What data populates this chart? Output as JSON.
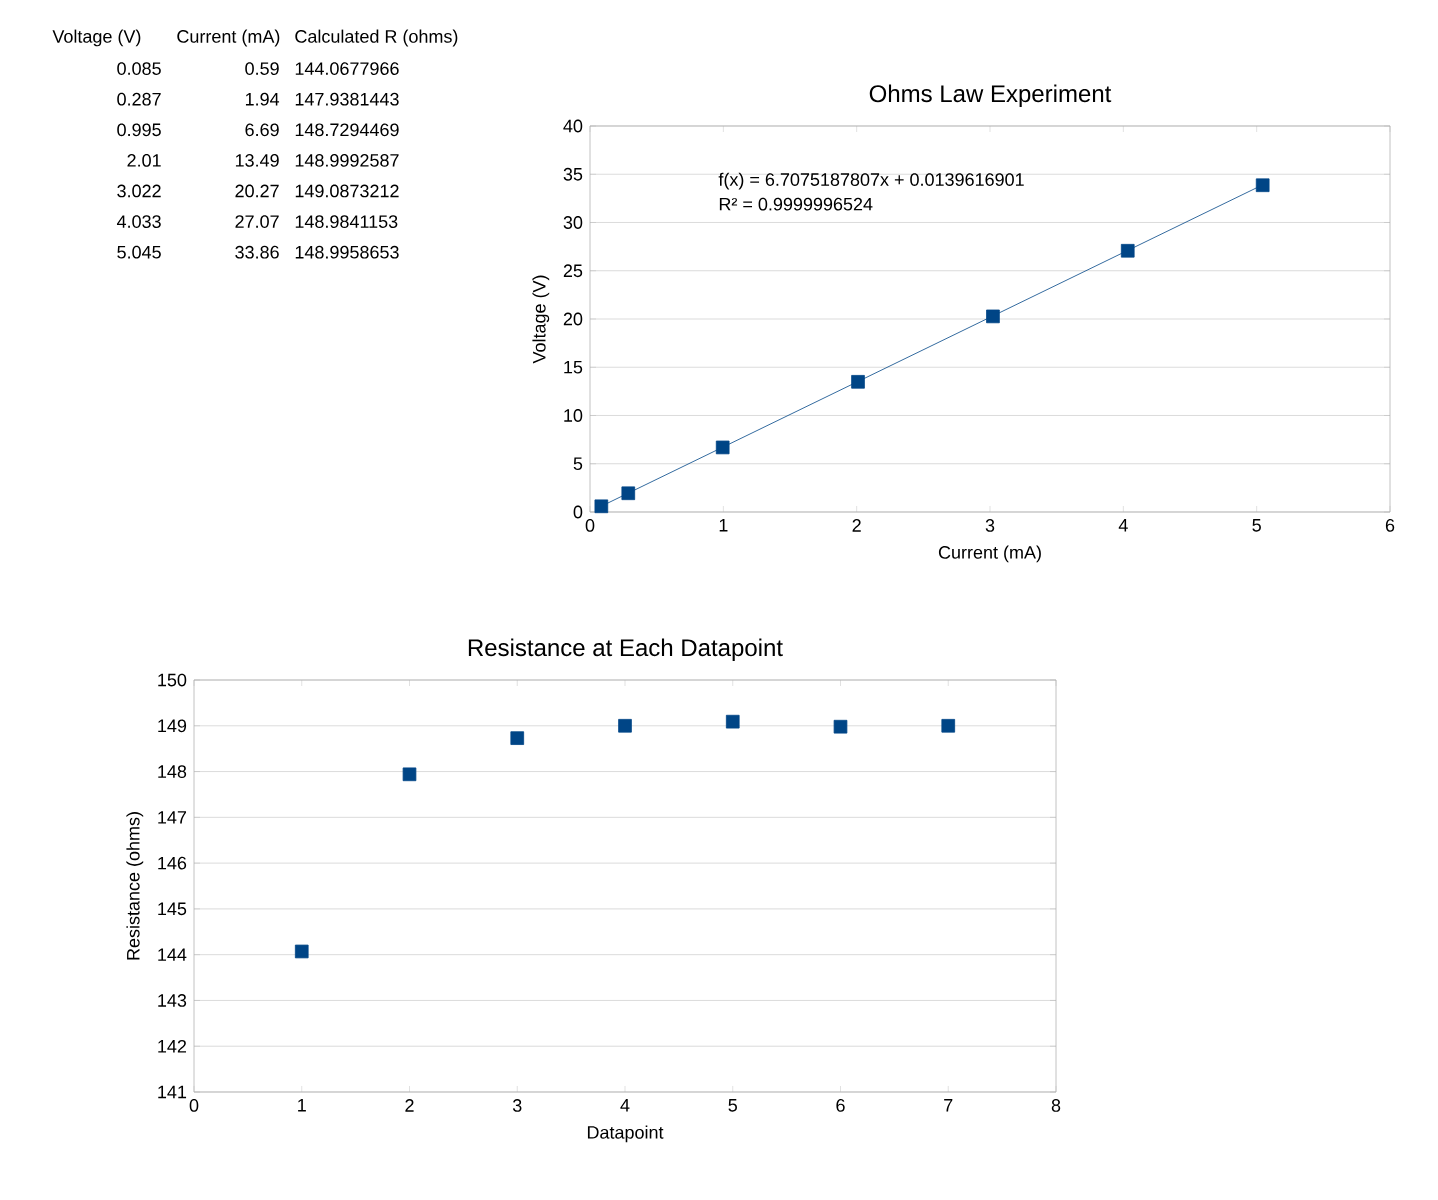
{
  "chart_data": [
    {
      "type": "other",
      "annotations": [
        "Voltage (V)",
        "Current (mA)",
        "Calculated R (ohms)",
        "0.085",
        "0.59",
        "144.0677966",
        "0.287",
        "1.94",
        "147.9381443",
        "0.995",
        "6.69",
        "148.7294469",
        "2.01",
        "13.49",
        "148.9992587",
        "3.022",
        "20.27",
        "149.0873212",
        "4.033",
        "27.07",
        "148.9841153",
        "5.045",
        "33.86",
        "148.9958653"
      ]
    },
    {
      "type": "scatter",
      "title": "Ohms Law Experiment",
      "xlabel": "Current (mA)",
      "ylabel": "Voltage (V)",
      "xlim": [
        0,
        6
      ],
      "xticks": [
        0,
        1,
        2,
        3,
        4,
        5,
        6
      ],
      "ylim": [
        0,
        40
      ],
      "yticks": [
        0,
        5,
        10,
        15,
        20,
        25,
        30,
        35,
        40
      ],
      "grid": "y",
      "marker": "square",
      "annotations": [
        "f(x) = 6.7075187807x + 0.0139616901",
        "R² = 0.9999996524"
      ],
      "series": [
        {
          "color": "#004586",
          "x": [
            0.085,
            0.287,
            0.995,
            2.01,
            3.022,
            4.033,
            5.045
          ],
          "values": [
            0.59,
            1.94,
            6.69,
            13.49,
            20.27,
            27.07,
            33.86
          ]
        },
        {
          "type": "line",
          "marker": "none",
          "color": "#004586",
          "x": [
            0.085,
            5.045
          ],
          "values": [
            0.6,
            33.9
          ]
        }
      ]
    },
    {
      "type": "scatter",
      "title": "Resistance at Each Datapoint",
      "xlabel": "Datapoint",
      "ylabel": "Resistance (ohms)",
      "xlim": [
        0,
        8
      ],
      "xticks": [
        0,
        1,
        2,
        3,
        4,
        5,
        6,
        7,
        8
      ],
      "ylim": [
        141,
        150
      ],
      "yticks": [
        141,
        142,
        143,
        144,
        145,
        146,
        147,
        148,
        149,
        150
      ],
      "grid": "y",
      "marker": "square",
      "series": [
        {
          "color": "#004586",
          "x": [
            1,
            2,
            3,
            4,
            5,
            6,
            7
          ],
          "values": [
            144.07,
            147.94,
            148.73,
            149.0,
            149.09,
            148.98,
            149.0
          ]
        }
      ]
    }
  ]
}
